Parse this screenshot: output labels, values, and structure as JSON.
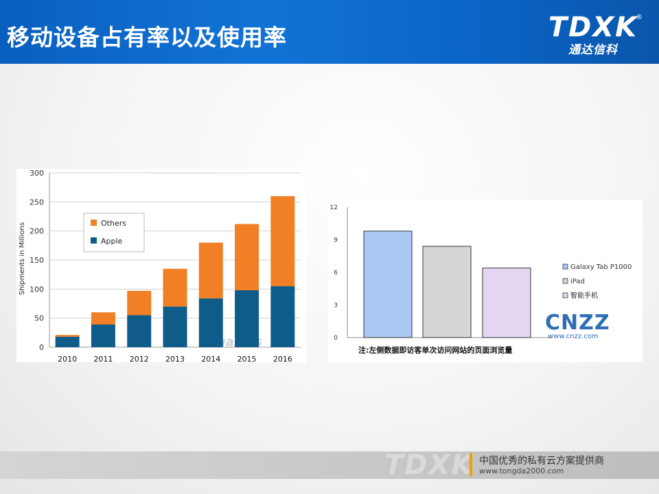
{
  "header": {
    "title": "移动设备占有率以及使用率",
    "logo_mark": "TDXK",
    "logo_reg": "®",
    "logo_sub": "通达信科"
  },
  "chart_data": [
    {
      "type": "bar",
      "stacked": true,
      "categories": [
        "2010",
        "2011",
        "2012",
        "2013",
        "2014",
        "2015",
        "2016"
      ],
      "series": [
        {
          "name": "Apple",
          "color": "#0f5b8a",
          "values": [
            18,
            39,
            55,
            70,
            84,
            98,
            105
          ]
        },
        {
          "name": "Others",
          "color": "#f07f26",
          "values": [
            3,
            21,
            42,
            65,
            96,
            114,
            155
          ]
        }
      ],
      "ylabel": "Shipments  in Millions",
      "ylim": [
        0,
        300
      ],
      "yticks": [
        "0",
        "50",
        "100",
        "150",
        "200",
        "250",
        "300"
      ],
      "grid": true,
      "legend_position": "top-left",
      "watermark": "PCgames"
    },
    {
      "type": "bar",
      "categories": [
        "Galaxy Tab P1000",
        "iPad",
        "智能手机"
      ],
      "values": [
        9.8,
        8.4,
        6.4
      ],
      "colors": [
        "#a9c9f2",
        "#d6d6d6",
        "#e4d6f3"
      ],
      "ylim": [
        0,
        12
      ],
      "yticks": [
        "0",
        "3",
        "6",
        "9",
        "12"
      ],
      "legend_position": "right",
      "note": "注:左侧数据即访客单次访问网站的页面浏览量",
      "watermark": "CNZZ",
      "watermark_url": "www.cnzz.com"
    }
  ],
  "footer": {
    "watermark": "TDXK",
    "line1": "中国优秀的私有云方案提供商",
    "line2": "www.tongda2000.com"
  }
}
